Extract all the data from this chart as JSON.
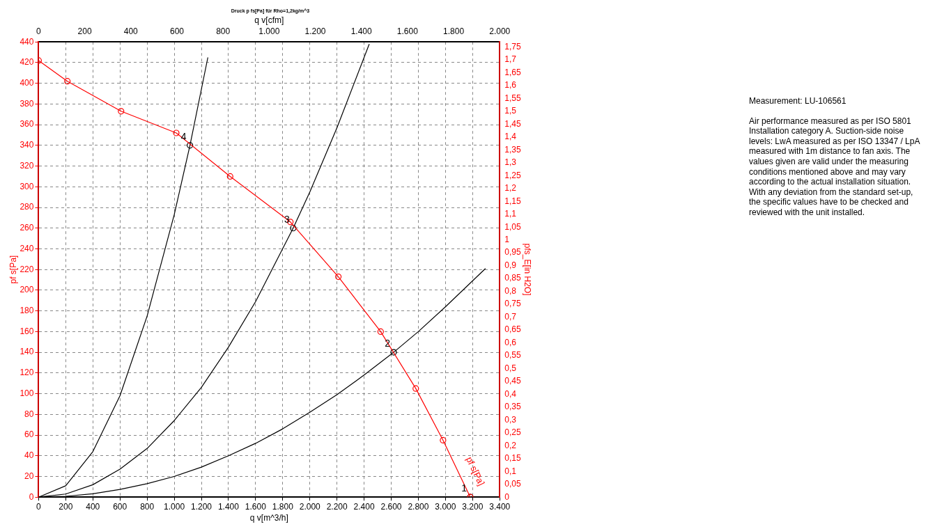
{
  "chart_data": {
    "type": "line",
    "title": "Druck p fs[Pa] für Rho=1,2kg/m^3",
    "xlabel": "q v[m^3/h]",
    "ylabel": "pf s[Pa]",
    "y2label": "pfs_E[in H2O]",
    "x2label": "q v[cfm]",
    "xlim": [
      0,
      3400
    ],
    "xticks": [
      0,
      200,
      400,
      600,
      800,
      {
        "value": 1000,
        "label": "1.000"
      },
      {
        "value": 1200,
        "label": "1.200"
      },
      {
        "value": 1400,
        "label": "1.400"
      },
      {
        "value": 1600,
        "label": "1.600"
      },
      {
        "value": 1800,
        "label": "1.800"
      },
      {
        "value": 2000,
        "label": "2.000"
      },
      {
        "value": 2200,
        "label": "2.200"
      },
      {
        "value": 2400,
        "label": "2.400"
      },
      {
        "value": 2600,
        "label": "2.600"
      },
      {
        "value": 2800,
        "label": "2.800"
      },
      {
        "value": 3000,
        "label": "3.000"
      },
      {
        "value": 3200,
        "label": "3.200"
      },
      {
        "value": 3400,
        "label": "3.400"
      }
    ],
    "x2lim": [
      0,
      2000
    ],
    "x2ticks": [
      0,
      200,
      400,
      600,
      800,
      {
        "value": 1000,
        "label": "1.000"
      },
      {
        "value": 1200,
        "label": "1.200"
      },
      {
        "value": 1400,
        "label": "1.400"
      },
      {
        "value": 1600,
        "label": "1.600"
      },
      {
        "value": 1800,
        "label": "1.800"
      },
      {
        "value": 2000,
        "label": "2.000"
      }
    ],
    "ylim": [
      0,
      440
    ],
    "yticks": [
      0,
      20,
      40,
      60,
      80,
      100,
      120,
      140,
      160,
      180,
      200,
      220,
      240,
      260,
      280,
      300,
      320,
      340,
      360,
      380,
      400,
      420,
      440
    ],
    "y2lim": [
      0,
      1.77
    ],
    "y2ticks": [
      0,
      {
        "value": 0.05,
        "label": "0,05"
      },
      {
        "value": 0.1,
        "label": "0,1"
      },
      {
        "value": 0.15,
        "label": "0,15"
      },
      {
        "value": 0.2,
        "label": "0,2"
      },
      {
        "value": 0.25,
        "label": "0,25"
      },
      {
        "value": 0.3,
        "label": "0,3"
      },
      {
        "value": 0.35,
        "label": "0,35"
      },
      {
        "value": 0.4,
        "label": "0,4"
      },
      {
        "value": 0.45,
        "label": "0,45"
      },
      {
        "value": 0.5,
        "label": "0,5"
      },
      {
        "value": 0.55,
        "label": "0,55"
      },
      {
        "value": 0.6,
        "label": "0,6"
      },
      {
        "value": 0.65,
        "label": "0,65"
      },
      {
        "value": 0.7,
        "label": "0,7"
      },
      {
        "value": 0.75,
        "label": "0,75"
      },
      {
        "value": 0.8,
        "label": "0,8"
      },
      {
        "value": 0.85,
        "label": "0,85"
      },
      {
        "value": 0.9,
        "label": "0,9"
      },
      {
        "value": 0.95,
        "label": "0,95"
      },
      1,
      {
        "value": 1.05,
        "label": "1,05"
      },
      {
        "value": 1.1,
        "label": "1,1"
      },
      {
        "value": 1.15,
        "label": "1,15"
      },
      {
        "value": 1.2,
        "label": "1,2"
      },
      {
        "value": 1.25,
        "label": "1,25"
      },
      {
        "value": 1.3,
        "label": "1,3"
      },
      {
        "value": 1.35,
        "label": "1,35"
      },
      {
        "value": 1.4,
        "label": "1,4"
      },
      {
        "value": 1.45,
        "label": "1,45"
      },
      {
        "value": 1.5,
        "label": "1,5"
      },
      {
        "value": 1.55,
        "label": "1,55"
      },
      {
        "value": 1.6,
        "label": "1,6"
      },
      {
        "value": 1.65,
        "label": "1,65"
      },
      {
        "value": 1.7,
        "label": "1,7"
      },
      {
        "value": 1.75,
        "label": "1,75"
      }
    ],
    "grid": true,
    "legend": false,
    "series": [
      {
        "name": "pf s[Pa]",
        "color": "#ff0000",
        "marker": "circle",
        "x": [
          0,
          212,
          608,
          1015,
          1412,
          1856,
          2210,
          2522,
          2781,
          2982,
          3183
        ],
        "values": [
          422,
          402,
          373,
          352,
          310,
          266,
          213,
          160,
          105,
          55,
          0
        ]
      },
      {
        "color": "#000000",
        "marker": "none",
        "x": [
          0,
          200,
          400,
          600,
          800,
          1000,
          1200,
          1400,
          1600,
          1800,
          2000,
          2200,
          2400,
          2618,
          2800,
          3000,
          3295
        ],
        "values": [
          0,
          0.8,
          3.3,
          7.4,
          13,
          20,
          29,
          40,
          52,
          66,
          82,
          99,
          118,
          140,
          160,
          184,
          221
        ]
      },
      {
        "color": "#000000",
        "marker": "none",
        "x": [
          0,
          200,
          400,
          600,
          800,
          1000,
          1200,
          1400,
          1600,
          1877,
          2000,
          2200,
          2438
        ],
        "values": [
          0,
          3,
          12,
          27,
          47,
          74,
          106,
          145,
          189,
          260,
          295,
          357,
          438
        ]
      },
      {
        "color": "#000000",
        "marker": "none",
        "x": [
          0,
          200,
          400,
          600,
          800,
          1000,
          1116,
          1248
        ],
        "values": [
          0,
          11,
          44,
          98,
          175,
          273,
          340,
          425
        ]
      },
      {
        "type": "scatter",
        "color": "#000000",
        "marker": "circle",
        "x": [
          3183,
          2618,
          1877,
          1116
        ],
        "values": [
          0,
          140,
          260,
          340
        ]
      }
    ],
    "annotations": [
      {
        "text": "1",
        "x": 3183,
        "y": 0
      },
      {
        "text": "2",
        "x": 2618,
        "y": 140
      },
      {
        "text": "3",
        "x": 1877,
        "y": 260
      },
      {
        "text": "4",
        "x": 1116,
        "y": 340
      },
      "Measurement: LU-106561",
      "Air performance measured as per ISO 5801 Installation category A. Suction-side noise levels: LwA measured as per ISO 13347 / LpA measured with 1m distance to fan axis. The values given are valid under the measuring conditions mentioned above and may vary according to the actual installation situation. With any deviation from the standard set-up, the specific values have to be checked and reviewed with the unit installed."
    ]
  }
}
